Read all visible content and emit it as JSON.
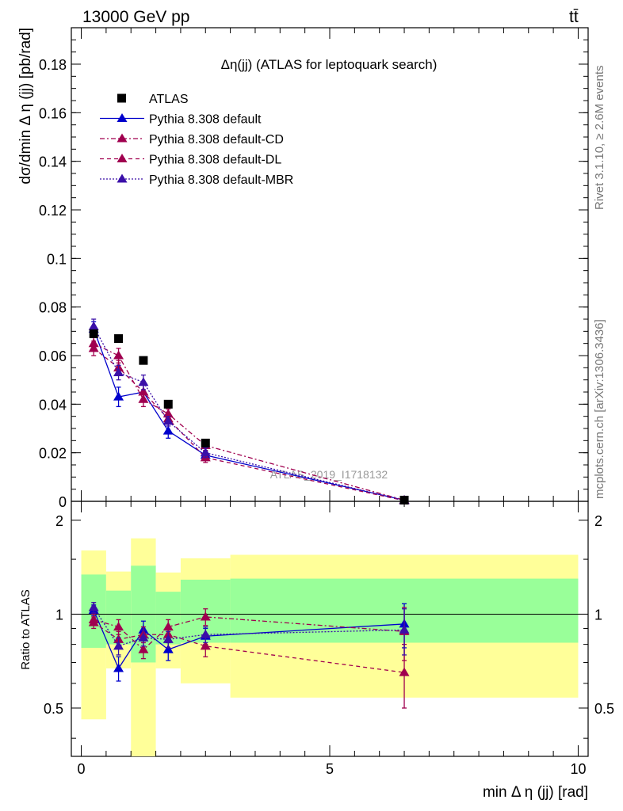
{
  "header": {
    "left_label": "13000 GeV pp",
    "right_label": "tt̄"
  },
  "side_labels": {
    "rivet": "Rivet 3.1.10, ≥ 2.6M events",
    "mcplots": "mcplots.cern.ch [arXiv:1306.3436]"
  },
  "colors": {
    "atlas": "#000000",
    "default": "#0000cc",
    "cd": "#a0004f",
    "dl": "#a0004f",
    "mbr": "#3a0fa8",
    "band_outer": "#ffff99",
    "band_inner": "#99ff99"
  },
  "chart_data": [
    {
      "type": "scatter",
      "panel": "main",
      "title": "Δη(jj) (ATLAS for leptoquark search)",
      "watermark": "ATLAS_2019_I1718132",
      "xlabel": "min Δ η (jj) [rad]",
      "ylabel": "dσ/dmin Δ η (jj) [pb/rad]",
      "xlim": [
        -0.2,
        10.2
      ],
      "ylim": [
        0,
        0.195
      ],
      "yticks": [
        0,
        0.02,
        0.04,
        0.06,
        0.08,
        0.1,
        0.12,
        0.14,
        0.16,
        0.18
      ],
      "ytick_labels": [
        "0",
        "0.02",
        "0.04",
        "0.06",
        "0.08",
        "0.1",
        "0.12",
        "0.14",
        "0.16",
        "0.18"
      ],
      "x": [
        0.25,
        0.75,
        1.25,
        1.75,
        2.5,
        6.5
      ],
      "legend": [
        "ATLAS",
        "Pythia 8.308 default",
        "Pythia 8.308 default-CD",
        "Pythia 8.308 default-DL",
        "Pythia 8.308 default-MBR"
      ],
      "series": [
        {
          "name": "ATLAS",
          "values": [
            0.069,
            0.067,
            0.058,
            0.04,
            0.024,
            0.0005
          ]
        },
        {
          "name": "Pythia 8.308 default",
          "values": [
            0.071,
            0.043,
            0.045,
            0.029,
            0.019,
            0.0005
          ],
          "errors": [
            0.003,
            0.004,
            0.003,
            0.003,
            0.0015,
            0.0001
          ]
        },
        {
          "name": "Pythia 8.308 default-CD",
          "values": [
            0.065,
            0.06,
            0.042,
            0.036,
            0.023,
            0.0005
          ],
          "errors": [
            0.003,
            0.003,
            0.003,
            0.002,
            0.002,
            0.0001
          ]
        },
        {
          "name": "Pythia 8.308 default-DL",
          "values": [
            0.063,
            0.055,
            0.045,
            0.034,
            0.018,
            0.0003
          ],
          "errors": [
            0.003,
            0.003,
            0.003,
            0.002,
            0.002,
            0.0001
          ]
        },
        {
          "name": "Pythia 8.308 default-MBR",
          "values": [
            0.072,
            0.053,
            0.049,
            0.033,
            0.02,
            0.0004
          ],
          "errors": [
            0.003,
            0.003,
            0.003,
            0.002,
            0.002,
            0.0001
          ]
        }
      ]
    },
    {
      "type": "scatter",
      "panel": "ratio",
      "ylabel": "Ratio to ATLAS",
      "xlim": [
        -0.2,
        10.2
      ],
      "ylim": [
        0.35,
        2.3
      ],
      "yticks": [
        0.5,
        1,
        2
      ],
      "ytick_labels": [
        "0.5",
        "1",
        "2"
      ],
      "xticks": [
        0,
        5,
        10
      ],
      "xtick_labels": [
        "0",
        "5",
        "10"
      ],
      "bands": [
        {
          "x0": 0.0,
          "x1": 0.5,
          "outer": [
            0.46,
            1.6
          ],
          "inner": [
            0.78,
            1.34
          ]
        },
        {
          "x0": 0.5,
          "x1": 1.0,
          "outer": [
            0.67,
            1.37
          ],
          "inner": [
            0.8,
            1.19
          ]
        },
        {
          "x0": 1.0,
          "x1": 1.5,
          "outer": [
            0.3,
            1.75
          ],
          "inner": [
            0.7,
            1.43
          ]
        },
        {
          "x0": 1.5,
          "x1": 2.0,
          "outer": [
            0.67,
            1.36
          ],
          "inner": [
            0.8,
            1.18
          ]
        },
        {
          "x0": 2.0,
          "x1": 3.0,
          "outer": [
            0.6,
            1.51
          ],
          "inner": [
            0.81,
            1.29
          ]
        },
        {
          "x0": 3.0,
          "x1": 10.0,
          "outer": [
            0.54,
            1.55
          ],
          "inner": [
            0.81,
            1.3
          ]
        }
      ],
      "x": [
        0.25,
        0.75,
        1.25,
        1.75,
        2.5,
        6.5
      ],
      "series": [
        {
          "name": "Pythia 8.308 default",
          "values": [
            1.03,
            0.67,
            0.89,
            0.77,
            0.85,
            0.93
          ],
          "errors": [
            0.04,
            0.06,
            0.06,
            0.06,
            0.05,
            0.15
          ]
        },
        {
          "name": "Pythia 8.308 default-CD",
          "values": [
            0.96,
            0.91,
            0.77,
            0.91,
            0.98,
            0.88
          ],
          "errors": [
            0.04,
            0.05,
            0.05,
            0.05,
            0.06,
            0.17
          ]
        },
        {
          "name": "Pythia 8.308 default-DL",
          "values": [
            0.94,
            0.83,
            0.86,
            0.86,
            0.79,
            0.65
          ],
          "errors": [
            0.04,
            0.05,
            0.05,
            0.05,
            0.06,
            0.15
          ]
        },
        {
          "name": "Pythia 8.308 default-MBR",
          "values": [
            1.05,
            0.79,
            0.84,
            0.83,
            0.86,
            0.89
          ],
          "errors": [
            0.04,
            0.05,
            0.05,
            0.05,
            0.05,
            0.15
          ]
        }
      ]
    }
  ]
}
